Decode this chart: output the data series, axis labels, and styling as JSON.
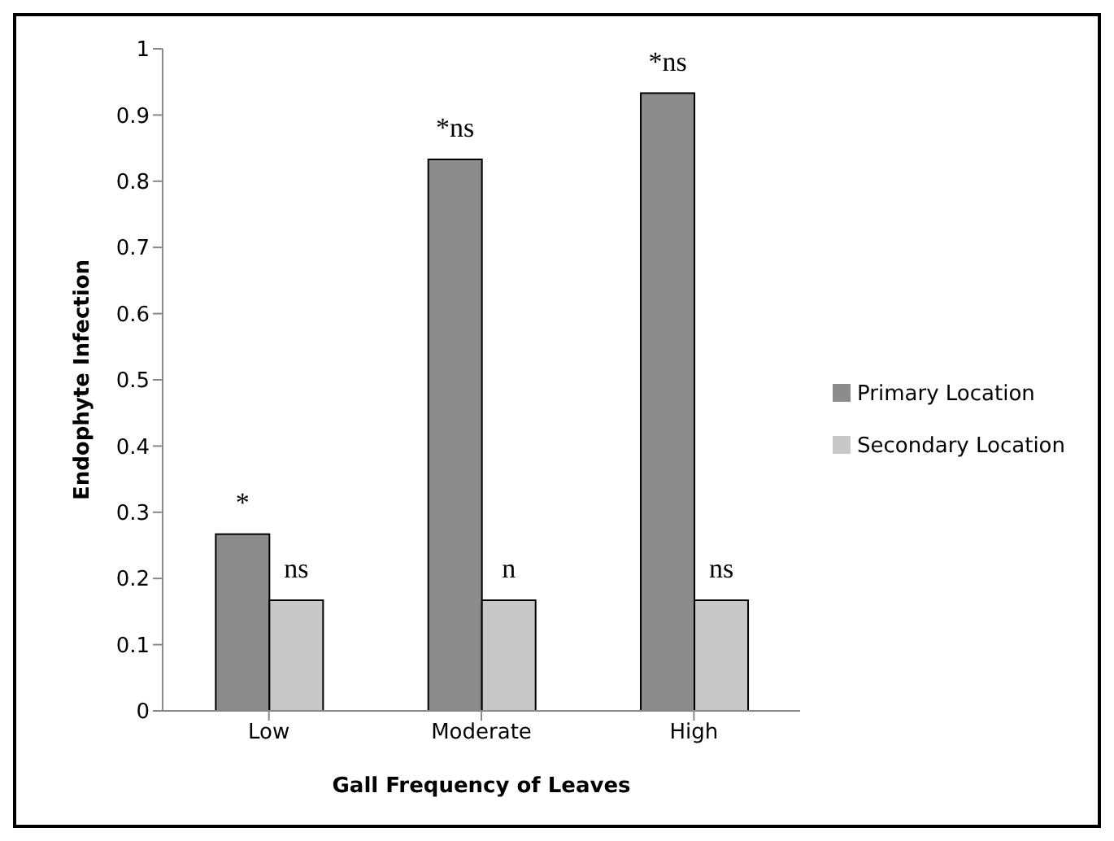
{
  "chart_data": {
    "type": "bar",
    "xlabel": "Gall Frequency of Leaves",
    "ylabel": "Endophyte Infection",
    "categories": [
      "Low",
      "Moderate",
      "High"
    ],
    "series": [
      {
        "name": "Primary Location",
        "color": "#8c8c8c",
        "values": [
          0.267,
          0.833,
          0.933
        ],
        "value_labels": [
          "*",
          "*ns",
          "*ns"
        ]
      },
      {
        "name": "Secondary Location",
        "color": "#c8c8c8",
        "values": [
          0.167,
          0.167,
          0.167
        ],
        "value_labels": [
          "ns",
          "n",
          "ns"
        ]
      }
    ],
    "ylim": [
      0,
      1
    ],
    "yticks": [
      0,
      0.1,
      0.2,
      0.3,
      0.4,
      0.5,
      0.6,
      0.7,
      0.8,
      0.9,
      1
    ],
    "grid": false,
    "legend": "right"
  }
}
